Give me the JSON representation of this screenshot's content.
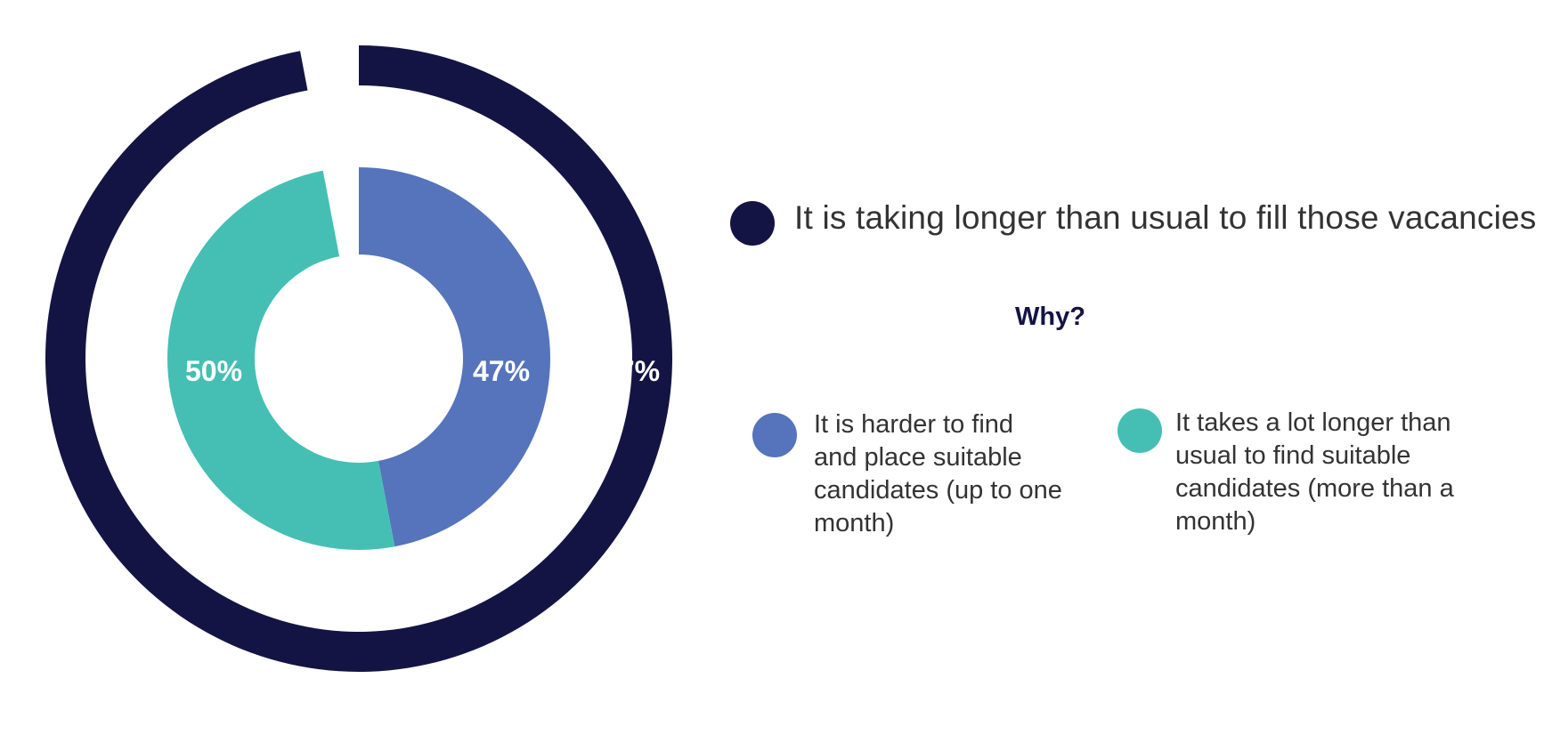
{
  "chart_data": {
    "type": "donut",
    "outer_ring": {
      "series": [
        {
          "name": "It is taking longer than usual to fill those vacancies",
          "value": 97,
          "label": "97%",
          "color": "#141444"
        }
      ]
    },
    "inner_ring": {
      "series": [
        {
          "name": "It is harder to find and place suitable candidates (up to one month)",
          "value": 47,
          "label": "47%",
          "color": "#5574bb"
        },
        {
          "name": "It takes a lot longer than usual to find suitable candidates (more than a month)",
          "value": 50,
          "label": "50%",
          "color": "#45bfb3"
        }
      ]
    },
    "units": "%",
    "legend_heading": "Why?",
    "legend_placement": "right"
  },
  "legend": {
    "outer_label": "It is taking longer than usual to fill those vacancies",
    "why_label": "Why?",
    "inner1_label": "It is harder to find and place suitable candidates (up to one month)",
    "inner2_label": "It takes a lot longer than usual to find suitable candidates (more than a month)"
  }
}
